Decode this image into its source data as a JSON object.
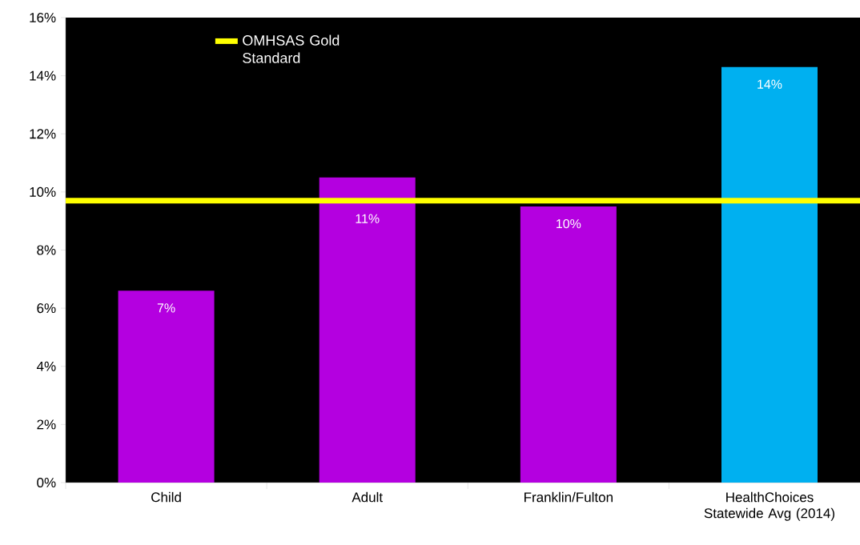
{
  "chart_data": {
    "type": "bar",
    "categories": [
      "Child",
      "Adult",
      "Franklin/Fulton",
      "HealthChoices Statewide Avg (2014)"
    ],
    "values": [
      6.6,
      10.5,
      9.5,
      14.3
    ],
    "colors": [
      "#b400e0",
      "#b400e0",
      "#b400e0",
      "#00b0f0"
    ],
    "value_labels": [
      "7%",
      "11%",
      "10%",
      "14%"
    ],
    "ylim": [
      0,
      16
    ],
    "yticks": [
      {
        "value": 0,
        "label": "0%"
      },
      {
        "value": 2,
        "label": "2%"
      },
      {
        "value": 4,
        "label": "4%"
      },
      {
        "value": 6,
        "label": "6%"
      },
      {
        "value": 8,
        "label": "8%"
      },
      {
        "value": 10,
        "label": "10%"
      },
      {
        "value": 12,
        "label": "12%"
      },
      {
        "value": 14,
        "label": "14%"
      },
      {
        "value": 16,
        "label": "16%"
      }
    ],
    "ref_lines": [
      {
        "axis": "y",
        "value": 9.7,
        "label": "OMHSAS Gold Standard",
        "color": "#ffff00"
      }
    ],
    "legend": "top left"
  }
}
